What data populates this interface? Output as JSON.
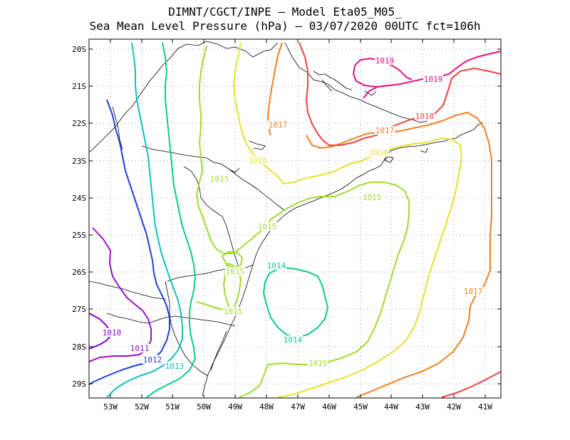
{
  "title_line1": "DIMNT/CGCT/INPE –  Model Eta05_M05_",
  "title_line2": "Sea Mean Level Pressure (hPa) – 03/07/2020 00UTC fct=106h",
  "lat_labels": [
    "20S",
    "21S",
    "22S",
    "23S",
    "24S",
    "25S",
    "26S",
    "27S",
    "28S",
    "29S"
  ],
  "lon_labels": [
    "53W",
    "52W",
    "51W",
    "50W",
    "49W",
    "48W",
    "47W",
    "46W",
    "45W",
    "44W",
    "43W",
    "42W",
    "41W"
  ],
  "colors": {
    "1010": "#8800cc",
    "1011": "#9a10c8",
    "1012": "#2040e0",
    "1013": "#10c0c0",
    "1014": "#10c890",
    "1015": "#a0dc30",
    "1016": "#e8e030",
    "1017": "#f08020",
    "1018": "#f04040",
    "1019": "#e8108a"
  },
  "contour_labels": [
    {
      "text": "1010",
      "level": "1010"
    },
    {
      "text": "1011",
      "level": "1011"
    },
    {
      "text": "1012",
      "level": "1012"
    },
    {
      "text": "1013",
      "level": "1013"
    },
    {
      "text": "1014",
      "level": "1014"
    },
    {
      "text": "1014",
      "level": "1014"
    },
    {
      "text": "1015",
      "level": "1015"
    },
    {
      "text": "1015",
      "level": "1015"
    },
    {
      "text": "1015",
      "level": "1015"
    },
    {
      "text": "1015",
      "level": "1015"
    },
    {
      "text": "1015",
      "level": "1015"
    },
    {
      "text": "1015",
      "level": "1015"
    },
    {
      "text": "1016",
      "level": "1016"
    },
    {
      "text": "1016",
      "level": "1016"
    },
    {
      "text": "1017",
      "level": "1017"
    },
    {
      "text": "1017",
      "level": "1017"
    },
    {
      "text": "1017",
      "level": "1017"
    },
    {
      "text": "1018",
      "level": "1018"
    },
    {
      "text": "1019",
      "level": "1019"
    },
    {
      "text": "1019",
      "level": "1019"
    }
  ]
}
